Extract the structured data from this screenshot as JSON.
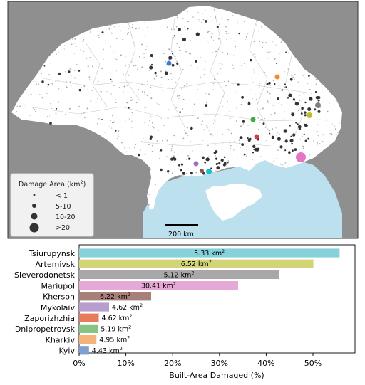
{
  "map": {
    "legend": {
      "title": "Damage Area (km",
      "title_sup": "2",
      "title_close": ")",
      "items": [
        "< 1",
        "5-10",
        "10-20",
        ">20"
      ]
    },
    "scale_bar_label": "200 km",
    "city_markers": [
      {
        "city": "Kyiv",
        "color": "#3b7dd8"
      },
      {
        "city": "Kharkiv",
        "color": "#f5892c"
      },
      {
        "city": "Dnipropetrovsk",
        "color": "#3dac3d"
      },
      {
        "city": "Zaporizhzhia",
        "color": "#d93d3d"
      },
      {
        "city": "Mykolaiv",
        "color": "#9b6fc6"
      },
      {
        "city": "Kherson",
        "color": "#8c564b"
      },
      {
        "city": "Mariupol",
        "color": "#e377c2"
      },
      {
        "city": "Sieverodonetsk",
        "color": "#7f7f7f"
      },
      {
        "city": "Artemivsk",
        "color": "#bcbd22"
      },
      {
        "city": "Tsiurupynsk",
        "color": "#17becf"
      }
    ],
    "colors": {
      "sea": "#bde0ee",
      "foreign_land": "#8f8f8f",
      "ukraine": "#ffffff"
    }
  },
  "chart_data": {
    "type": "bar",
    "orientation": "horizontal",
    "xlabel": "Built-Area Damaged (%)",
    "ylabel": "",
    "xlim": [
      0,
      0.59
    ],
    "xticks": [
      "0%",
      "10%",
      "20%",
      "30%",
      "40%",
      "50%"
    ],
    "xtick_values": [
      0,
      0.1,
      0.2,
      0.3,
      0.4,
      0.5
    ],
    "grid": false,
    "unit_sup": "2",
    "categories": [
      "Tsiurupynsk",
      "Artemivsk",
      "Sieverodonetsk",
      "Mariupol",
      "Kherson",
      "Mykolaiv",
      "Zaporizhzhia",
      "Dnipropetrovsk",
      "Kharkiv",
      "Kyiv"
    ],
    "values": [
      0.557,
      0.501,
      0.427,
      0.34,
      0.154,
      0.064,
      0.042,
      0.04,
      0.037,
      0.021
    ],
    "damage_area_labels": [
      "5.33 km",
      "6.52 km",
      "5.12 km",
      "30.41 km",
      "6.22 km",
      "4.62 km",
      "4.62 km",
      "5.19 km",
      "4.95 km",
      "4.43 km"
    ],
    "colors": [
      "#86d2db",
      "#d3d476",
      "#a8a8a8",
      "#e6a8d4",
      "#a8807a",
      "#b69ecf",
      "#e87a5c",
      "#86c484",
      "#f5b27a",
      "#7e9fd1"
    ]
  }
}
